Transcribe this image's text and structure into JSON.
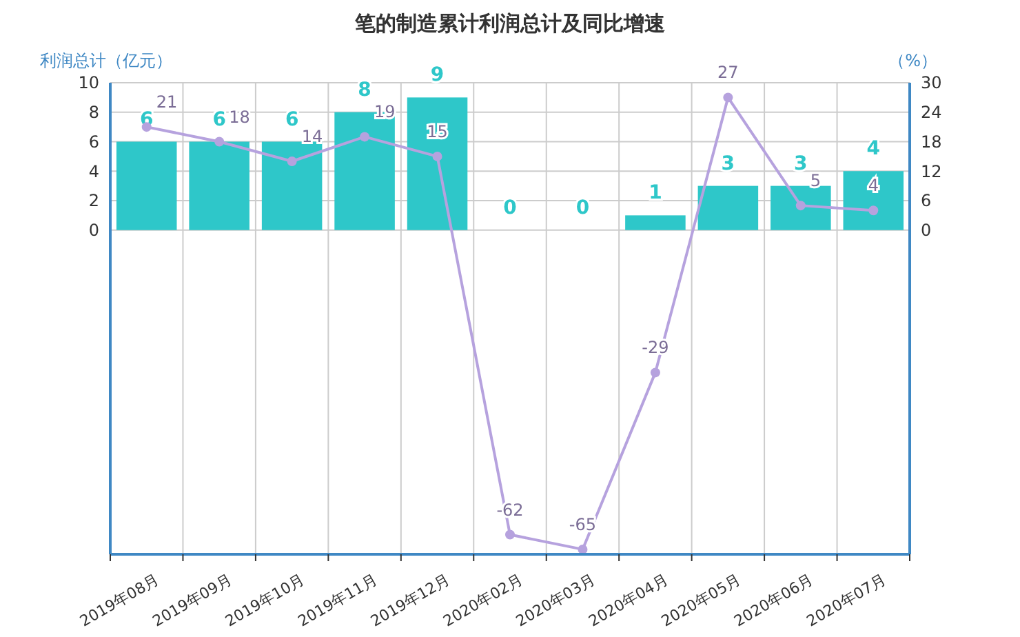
{
  "chart_data": {
    "type": "bar",
    "title": "笔的制造累计利润总计及同比增速",
    "ylabel": "利润总计（亿元）",
    "y2label": "（%）",
    "categories": [
      "2019年08月",
      "2019年09月",
      "2019年10月",
      "2019年11月",
      "2019年12月",
      "2020年02月",
      "2020年03月",
      "2020年04月",
      "2020年05月",
      "2020年06月",
      "2020年07月"
    ],
    "series": [
      {
        "color": "#2ec7c9",
        "values": [
          6,
          6,
          6,
          8,
          9,
          0,
          0,
          1,
          3,
          3,
          4
        ],
        "value_labels": [
          "6",
          "6",
          "6",
          "8",
          "9",
          "0",
          "0",
          "1",
          "3",
          "3",
          "4"
        ]
      },
      {
        "type": "line",
        "axis": "y2",
        "color": "#b6a2de",
        "marker": "circle",
        "values": [
          21,
          18,
          14,
          19,
          15,
          -62,
          -65,
          -29,
          27,
          5,
          4
        ],
        "value_labels": [
          "21",
          "18",
          "14",
          "19",
          "15",
          "-62",
          "-65",
          "-29",
          "27",
          "5",
          "4"
        ]
      }
    ],
    "ylim": [
      -22,
      10
    ],
    "yticks": [
      0,
      2,
      4,
      6,
      8,
      10
    ],
    "y2lim": [
      -66,
      30
    ],
    "y2ticks": [
      0,
      6,
      12,
      18,
      24,
      30
    ],
    "grid": true
  }
}
